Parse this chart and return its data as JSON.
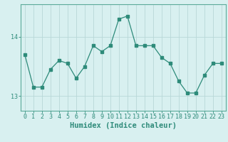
{
  "xlabel": "Humidex (Indice chaleur)",
  "ylabel": "",
  "x_values": [
    0,
    1,
    2,
    3,
    4,
    5,
    6,
    7,
    8,
    9,
    10,
    11,
    12,
    13,
    14,
    15,
    16,
    17,
    18,
    19,
    20,
    21,
    22,
    23
  ],
  "y_values": [
    13.7,
    13.15,
    13.15,
    13.45,
    13.6,
    13.55,
    13.3,
    13.5,
    13.85,
    13.75,
    13.85,
    14.3,
    14.35,
    13.85,
    13.85,
    13.85,
    13.65,
    13.55,
    13.25,
    13.05,
    13.05,
    13.35,
    13.55,
    13.55
  ],
  "line_color": "#2e8b7a",
  "marker": "s",
  "marker_size": 2.5,
  "bg_color": "#d8f0f0",
  "grid_color": "#b8d8d8",
  "ylim": [
    12.75,
    14.55
  ],
  "yticks": [
    13,
    14
  ],
  "xlim": [
    -0.5,
    23.5
  ],
  "tick_label_fontsize": 6.0,
  "axis_label_fontsize": 7.5
}
